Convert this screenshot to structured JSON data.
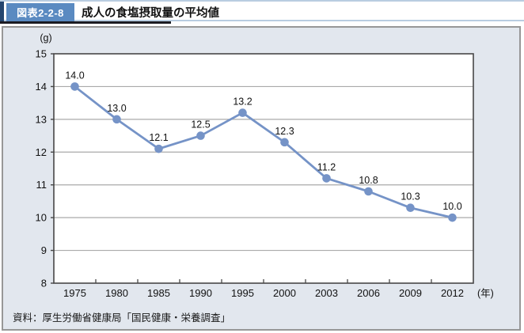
{
  "header": {
    "badge": "図表2-2-8",
    "title": "成人の食塩摂取量の平均値"
  },
  "chart_data": {
    "type": "line",
    "title": "成人の食塩摂取量の平均値",
    "ylabel_unit": "(g)",
    "xlabel_unit": "(年)",
    "categories": [
      "1975",
      "1980",
      "1985",
      "1990",
      "1995",
      "2000",
      "2003",
      "2006",
      "2009",
      "2012"
    ],
    "series": [
      {
        "name": "成人の食塩摂取量の平均値",
        "values": [
          14.0,
          13.0,
          12.1,
          12.5,
          13.2,
          12.3,
          11.2,
          10.8,
          10.3,
          10.0
        ]
      }
    ],
    "data_labels": [
      "14.0",
      "13.0",
      "12.1",
      "12.5",
      "13.2",
      "12.3",
      "11.2",
      "10.8",
      "10.3",
      "10.0"
    ],
    "ylim": [
      8,
      15
    ],
    "ytick_step": 1,
    "yticks": [
      8,
      9,
      10,
      11,
      12,
      13,
      14,
      15
    ],
    "grid": true,
    "legend": "none",
    "colors": {
      "line": "#7593c7",
      "marker": "#7593c7",
      "grid": "#aaaaaa",
      "frame": "#474747",
      "text": "#111111"
    }
  },
  "source": "資料：厚生労働省健康局「国民健康・栄養調査」",
  "theme": {
    "badge_bg": "#5a8ac1",
    "navy_accent": "#24456f",
    "band_border": "#b9cde1",
    "panel_bg": "#e2e7ee",
    "panel_border": "#979797"
  }
}
